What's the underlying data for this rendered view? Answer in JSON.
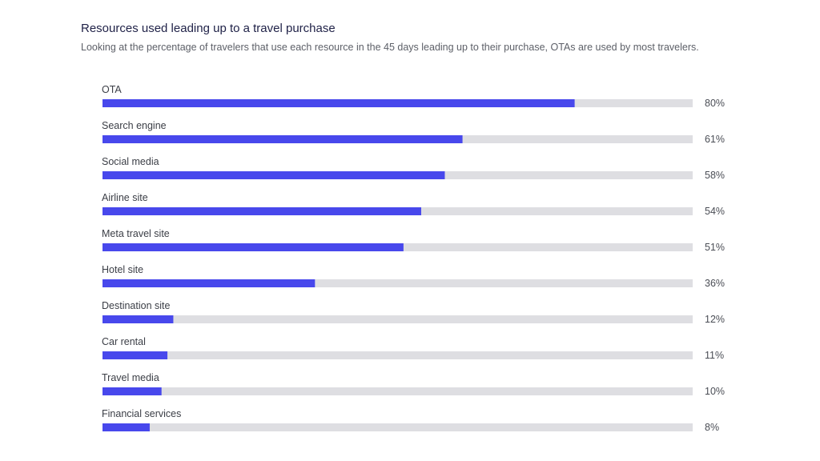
{
  "chart_data": {
    "type": "bar",
    "orientation": "horizontal",
    "title": "Resources used leading up to a travel purchase",
    "subtitle": "Looking at the percentage of travelers that use each resource in the 45 days leading up to their purchase, OTAs are used by most travelers.",
    "categories": [
      "OTA",
      "Search engine",
      "Social media",
      "Airline site",
      "Meta travel site",
      "Hotel site",
      "Destination site",
      "Car rental",
      "Travel media",
      "Financial services"
    ],
    "values": [
      80,
      61,
      58,
      54,
      51,
      36,
      12,
      11,
      10,
      8
    ],
    "value_labels": [
      "80%",
      "61%",
      "58%",
      "54%",
      "51%",
      "36%",
      "12%",
      "11%",
      "10%",
      "8%"
    ],
    "xlim": [
      0,
      100
    ],
    "grid": false,
    "legend": "none",
    "colors": {
      "bar": "#4848ec",
      "track": "#dedee2"
    }
  }
}
